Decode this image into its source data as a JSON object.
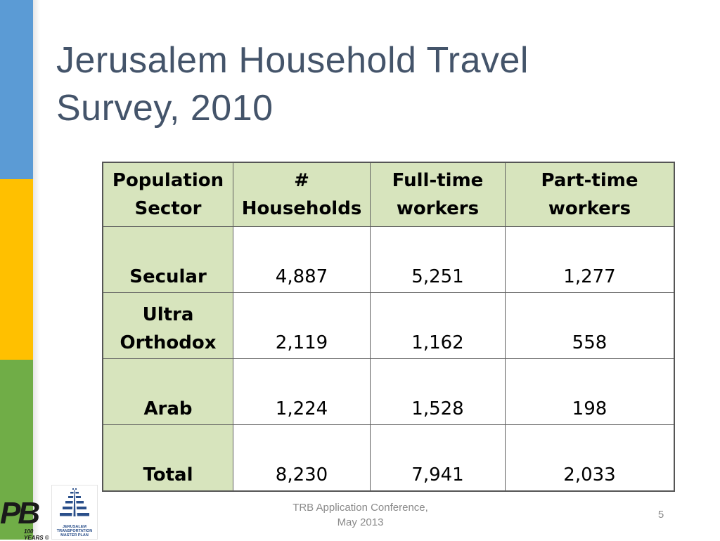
{
  "slide": {
    "title_line1": "Jerusalem Household Travel",
    "title_line2": "Survey, 2010",
    "footer_line1": "TRB Application Conference,",
    "footer_line2": "May 2013",
    "page_number": "5"
  },
  "table": {
    "headers": [
      "Population Sector",
      "# Households",
      "Full-time workers",
      "Part-time workers"
    ],
    "rows": [
      {
        "sector": "Secular",
        "households": "4,887",
        "full_time": "5,251",
        "part_time": "1,277"
      },
      {
        "sector": "Ultra Orthodox",
        "households": "2,119",
        "full_time": "1,162",
        "part_time": "558"
      },
      {
        "sector": "Arab",
        "households": "1,224",
        "full_time": "1,528",
        "part_time": "198"
      },
      {
        "sector": "Total",
        "households": "8,230",
        "full_time": "7,941",
        "part_time": "2,033"
      }
    ]
  },
  "logos": {
    "pb_letters": "PB",
    "pb_years": "100 YEARS ©",
    "jtmp_line1": "JERUSALEM",
    "jtmp_line2": "TRANSPORTATION",
    "jtmp_line3": "MASTER PLAN"
  },
  "colors": {
    "accent_blue": "#5b9bd5",
    "accent_yellow": "#ffc000",
    "accent_green": "#70ad47",
    "header_fill": "#d7e4bd",
    "title_color": "#44546a"
  }
}
